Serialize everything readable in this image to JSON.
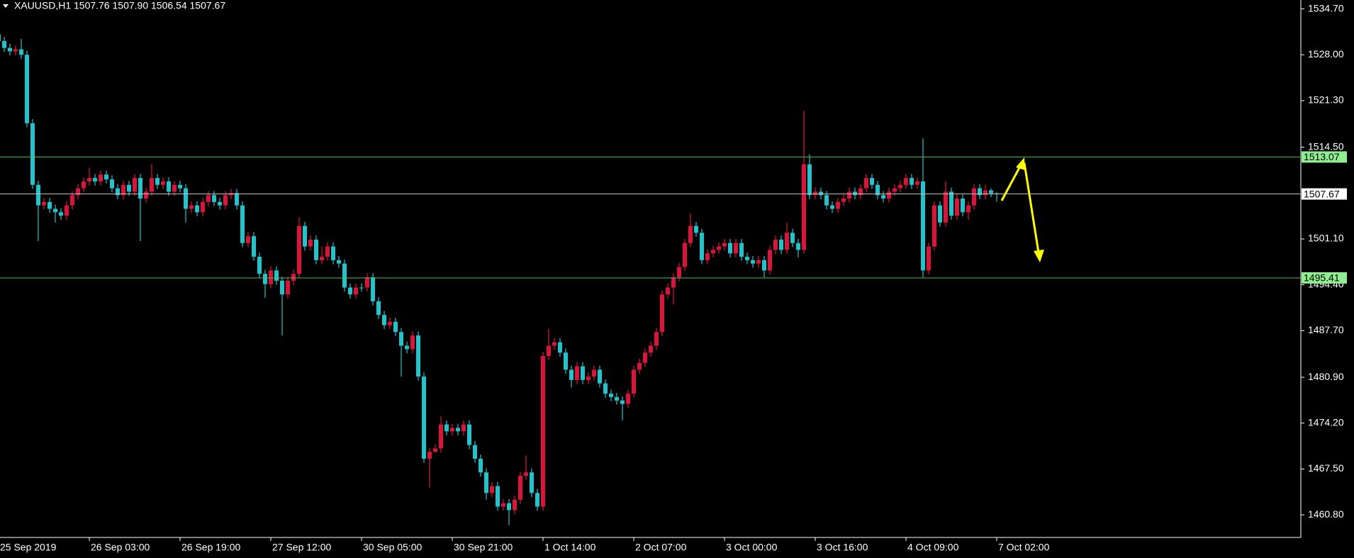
{
  "chart_data": {
    "type": "candlestick",
    "title": "XAUUSD,H1  1507.76 1507.90 1506.54 1507.67",
    "up_color": "#dc143c",
    "down_color": "#20c4cc",
    "ylim": [
      1457.5,
      1536.0
    ],
    "yticks": [
      {
        "value": 1460.8,
        "label": "1460.80"
      },
      {
        "value": 1467.5,
        "label": "1467.50"
      },
      {
        "value": 1474.2,
        "label": "1474.20"
      },
      {
        "value": 1480.9,
        "label": "1480.90"
      },
      {
        "value": 1487.7,
        "label": "1487.70"
      },
      {
        "value": 1494.4,
        "label": "1494.40"
      },
      {
        "value": 1501.1,
        "label": "1501.10"
      },
      {
        "value": 1514.5,
        "label": "1514.50"
      },
      {
        "value": 1521.3,
        "label": "1521.30"
      },
      {
        "value": 1528.0,
        "label": "1528.00"
      },
      {
        "value": 1534.7,
        "label": "1534.70"
      }
    ],
    "levels": [
      {
        "value": 1513.07,
        "color": "#4fbf4f",
        "label_bg": "#90ee90"
      },
      {
        "value": 1507.67,
        "color": "#c0c0c0",
        "label_bg": "#ffffff"
      },
      {
        "value": 1495.41,
        "color": "#4fbf4f",
        "label_bg": "#90ee90"
      }
    ],
    "categories": [
      "25 Sep 2019",
      null,
      null,
      null,
      null,
      null,
      null,
      null,
      null,
      null,
      null,
      null,
      null,
      null,
      null,
      null,
      "26 Sep 03:00",
      null,
      null,
      null,
      null,
      null,
      null,
      null,
      null,
      null,
      null,
      null,
      null,
      null,
      null,
      null,
      "26 Sep 19:00",
      null,
      null,
      null,
      null,
      null,
      null,
      null,
      null,
      null,
      null,
      null,
      null,
      null,
      null,
      null,
      "27 Sep 12:00",
      null,
      null,
      null,
      null,
      null,
      null,
      null,
      null,
      null,
      null,
      null,
      null,
      null,
      null,
      null,
      "30 Sep 05:00",
      null,
      null,
      null,
      null,
      null,
      null,
      null,
      null,
      null,
      null,
      null,
      null,
      null,
      null,
      null,
      "30 Sep 21:00",
      null,
      null,
      null,
      null,
      null,
      null,
      null,
      null,
      null,
      null,
      null,
      null,
      null,
      null,
      null,
      "1 Oct 14:00",
      null,
      null,
      null,
      null,
      null,
      null,
      null,
      null,
      null,
      null,
      null,
      null,
      null,
      null,
      null,
      "2 Oct 07:00",
      null,
      null,
      null,
      null,
      null,
      null,
      null,
      null,
      null,
      null,
      null,
      null,
      null,
      null,
      null,
      "3 Oct 00:00",
      null,
      null,
      null,
      null,
      null,
      null,
      null,
      null,
      null,
      null,
      null,
      null,
      null,
      null,
      null,
      "3 Oct 16:00",
      null,
      null,
      null,
      null,
      null,
      null,
      null,
      null,
      null,
      null,
      null,
      null,
      null,
      null,
      null,
      "4 Oct 09:00",
      null,
      null,
      null,
      null,
      null,
      null,
      null,
      null,
      null,
      null,
      null,
      null,
      null,
      null,
      null,
      "7 Oct 02:00"
    ],
    "open": [
      1531,
      1530,
      1529,
      1528.5,
      1528.8,
      1528,
      1518,
      1509,
      1506,
      1506.5,
      1505.5,
      1505,
      1504.5,
      1506,
      1507.5,
      1508.5,
      1509.5,
      1510,
      1509.5,
      1510.5,
      1509.8,
      1508.5,
      1507.5,
      1509,
      1508,
      1510,
      1507,
      1508,
      1510,
      1509,
      1509.5,
      1508,
      1509,
      1508.5,
      1505.5,
      1506,
      1505,
      1506.5,
      1507.5,
      1506.5,
      1506,
      1507.5,
      1507.8,
      1506,
      1500.5,
      1501.5,
      1498.5,
      1496,
      1494.5,
      1496.5,
      1495,
      1493,
      1495,
      1496,
      1503,
      1500,
      1501,
      1498,
      1498.5,
      1500,
      1498,
      1497.5,
      1494,
      1493,
      1494,
      1494,
      1495.5,
      1492,
      1490,
      1488.5,
      1489,
      1487.5,
      1485.5,
      1485,
      1487,
      1481,
      1469,
      1470,
      1470.5,
      1474,
      1473,
      1473.5,
      1473,
      1474,
      1471,
      1469,
      1467,
      1464,
      1465,
      1462,
      1462.5,
      1461.5,
      1463,
      1466.5,
      1467,
      1464,
      1462,
      1484,
      1485.5,
      1486,
      1484.5,
      1482,
      1480.5,
      1482.5,
      1480.5,
      1481,
      1482,
      1480,
      1478.5,
      1478,
      1477.5,
      1477,
      1478.5,
      1482,
      1483,
      1484.5,
      1485.5,
      1487.5,
      1493,
      1494,
      1495.5,
      1497,
      1500.5,
      1503,
      1502,
      1498,
      1499,
      1499.5,
      1500,
      1500.5,
      1499,
      1500.5,
      1498.5,
      1498,
      1497.5,
      1498,
      1496.5,
      1499.5,
      1501,
      1499.5,
      1502,
      1500.5,
      1499.5,
      1512,
      1507.5,
      1508,
      1507.5,
      1506,
      1505.5,
      1506.5,
      1507,
      1508,
      1507.5,
      1508.5,
      1510,
      1509,
      1507.5,
      1507,
      1508,
      1508.5,
      1509,
      1510,
      1509,
      1509.5,
      1496.5,
      1500,
      1506,
      1503.5,
      1508,
      1504.5,
      1507,
      1505,
      1506,
      1508.5,
      1507.5,
      1508.2,
      1507.76
    ],
    "high": [
      1531.6,
      1530.6,
      1529.6,
      1529.4,
      1530.3,
      1528.6,
      1518.6,
      1509.6,
      1507.1,
      1507.1,
      1506.1,
      1505.6,
      1506.6,
      1508.1,
      1509.1,
      1510.1,
      1511.5,
      1510.6,
      1511.1,
      1511.1,
      1510.4,
      1509.1,
      1509.6,
      1509.6,
      1510.6,
      1510.6,
      1508.6,
      1512,
      1510.6,
      1510.1,
      1510.1,
      1509.6,
      1509.6,
      1509.1,
      1506.6,
      1506.6,
      1507.1,
      1508.1,
      1508.1,
      1507.1,
      1508.1,
      1508.4,
      1508.4,
      1506.6,
      1502.1,
      1502.1,
      1499.1,
      1496.6,
      1497.1,
      1497.1,
      1495.6,
      1495.6,
      1496.6,
      1504.3,
      1503.6,
      1501.6,
      1501.6,
      1500,
      1500.6,
      1500.6,
      1498.6,
      1498.1,
      1494.6,
      1494.6,
      1494.6,
      1496.1,
      1496.1,
      1492.6,
      1490.6,
      1489.6,
      1489.6,
      1488.1,
      1486.1,
      1487.6,
      1487.6,
      1481.6,
      1470.6,
      1471.1,
      1475.2,
      1474.6,
      1474.1,
      1474.1,
      1474.6,
      1474.6,
      1471.6,
      1469.6,
      1467.6,
      1465.6,
      1465.6,
      1463.1,
      1463.1,
      1463.6,
      1467.1,
      1469.5,
      1467.6,
      1464.6,
      1484.6,
      1488,
      1486.6,
      1486.6,
      1485.1,
      1482.6,
      1483.1,
      1483.1,
      1481.6,
      1482.6,
      1482.6,
      1480.6,
      1479.1,
      1478.6,
      1478.1,
      1479.1,
      1482.6,
      1483.6,
      1485.1,
      1486.1,
      1488.1,
      1493.6,
      1494.6,
      1496.1,
      1497.6,
      1501.1,
      1504.8,
      1503.6,
      1502.6,
      1499.6,
      1500.1,
      1500.6,
      1501.1,
      1501.1,
      1501.1,
      1501.1,
      1499.1,
      1498.6,
      1498.6,
      1498.6,
      1500.1,
      1501.6,
      1501.6,
      1503.5,
      1502.6,
      1501.1,
      1519.8,
      1513.5,
      1508.6,
      1508.6,
      1508.1,
      1506.6,
      1507.1,
      1507.6,
      1508.6,
      1508.6,
      1509.1,
      1510.6,
      1510.6,
      1509.6,
      1508.1,
      1508.6,
      1509.1,
      1509.6,
      1510.6,
      1510.6,
      1510.1,
      1515.8,
      1500.6,
      1506.6,
      1506.6,
      1509.5,
      1508.6,
      1507.6,
      1507.6,
      1506.6,
      1509.1,
      1509.1,
      1509,
      1508.5,
      1507.9
    ],
    "low": [
      1529.4,
      1528.4,
      1527.9,
      1527.9,
      1527.4,
      1517.4,
      1508.4,
      1500.8,
      1505.4,
      1504.9,
      1503.5,
      1503.9,
      1503.9,
      1505.4,
      1506.9,
      1507.9,
      1508.9,
      1508.9,
      1508.9,
      1509.2,
      1507.9,
      1506.9,
      1506.9,
      1507.4,
      1507.4,
      1500.8,
      1506.4,
      1507.4,
      1508.4,
      1508.4,
      1507.4,
      1507.4,
      1507.9,
      1503.5,
      1504.9,
      1504.4,
      1504.4,
      1505.9,
      1505.9,
      1505.4,
      1505.4,
      1506.9,
      1505.4,
      1499.9,
      1499.9,
      1497.9,
      1495.4,
      1492.5,
      1493.9,
      1494.4,
      1487,
      1492.4,
      1494.4,
      1495.4,
      1499.4,
      1499.4,
      1497.4,
      1497.4,
      1497.9,
      1497.4,
      1496.9,
      1493.4,
      1492.4,
      1492.4,
      1493.4,
      1493.4,
      1491.4,
      1489.4,
      1487.9,
      1487.9,
      1486.9,
      1481,
      1484.4,
      1484.4,
      1480.4,
      1468.4,
      1464.8,
      1469.9,
      1469.9,
      1472.4,
      1472.4,
      1472.4,
      1472.4,
      1470.4,
      1468.4,
      1466.4,
      1463,
      1463.4,
      1461.4,
      1461.4,
      1459.3,
      1460.9,
      1462.4,
      1465.9,
      1463.4,
      1461.4,
      1461.4,
      1483.4,
      1484.9,
      1483.9,
      1481.4,
      1479.4,
      1479.9,
      1479.9,
      1479.9,
      1480.4,
      1479.4,
      1477.9,
      1477.4,
      1476.9,
      1474.6,
      1476.4,
      1477.9,
      1481.4,
      1482.4,
      1483.9,
      1484.9,
      1486.9,
      1492.4,
      1491.5,
      1494.9,
      1496.4,
      1499.9,
      1501.4,
      1497.4,
      1497.4,
      1498.4,
      1498.9,
      1499.4,
      1498.4,
      1498.4,
      1497.9,
      1497.4,
      1496.9,
      1496.9,
      1495.5,
      1495.9,
      1498.9,
      1498.9,
      1498.9,
      1499.9,
      1498.4,
      1499,
      1506.9,
      1506.9,
      1506.9,
      1505.4,
      1504.9,
      1504.9,
      1505.9,
      1506.4,
      1506.9,
      1506.9,
      1507.9,
      1508.4,
      1506.9,
      1506.4,
      1506.4,
      1507.4,
      1507.9,
      1508.4,
      1508.4,
      1508.4,
      1495.5,
      1495.9,
      1499.4,
      1502.9,
      1502.9,
      1503.9,
      1503.9,
      1504.4,
      1503.9,
      1505.4,
      1506.9,
      1506.9,
      1507.2,
      1506.54
    ],
    "close": [
      1530,
      1529,
      1528.5,
      1528.8,
      1528,
      1518,
      1509,
      1506,
      1506.5,
      1505.5,
      1505,
      1504.5,
      1506,
      1507.5,
      1508.5,
      1509.5,
      1510,
      1509.5,
      1510.5,
      1509.8,
      1508.5,
      1507.5,
      1509,
      1508,
      1510,
      1507,
      1508,
      1510,
      1509,
      1509.5,
      1508,
      1509,
      1508.5,
      1505.5,
      1506,
      1505,
      1506.5,
      1507.5,
      1506.5,
      1506,
      1507.5,
      1507.8,
      1506,
      1500.5,
      1501.5,
      1498.5,
      1496,
      1494.5,
      1496.5,
      1495,
      1493,
      1495,
      1496,
      1503,
      1500,
      1501,
      1498,
      1498.5,
      1500,
      1498,
      1497.5,
      1494,
      1493,
      1494,
      1494,
      1495.5,
      1492,
      1490,
      1488.5,
      1489,
      1487.5,
      1485.5,
      1485,
      1487,
      1481,
      1469,
      1470,
      1470.5,
      1474,
      1473,
      1473.5,
      1473,
      1474,
      1471,
      1469,
      1467,
      1464,
      1465,
      1462,
      1462.5,
      1461.5,
      1463,
      1466.5,
      1467,
      1464,
      1462,
      1484,
      1485.5,
      1486,
      1484.5,
      1482,
      1480.5,
      1482.5,
      1480.5,
      1481,
      1482,
      1480,
      1478.5,
      1478,
      1477.5,
      1477,
      1478.5,
      1482,
      1483,
      1484.5,
      1485.5,
      1487.5,
      1493,
      1494,
      1495.5,
      1497,
      1500.5,
      1503,
      1502,
      1498,
      1499,
      1499.5,
      1500,
      1500.5,
      1499,
      1500.5,
      1498.5,
      1498,
      1497.5,
      1498,
      1496.5,
      1499.5,
      1501,
      1499.5,
      1502,
      1500.5,
      1499.5,
      1512,
      1507.5,
      1508,
      1507.5,
      1506,
      1505.5,
      1506.5,
      1507,
      1508,
      1507.5,
      1508.5,
      1510,
      1509,
      1507.5,
      1507,
      1508,
      1508.5,
      1509,
      1510,
      1509,
      1509.5,
      1496.5,
      1500,
      1506,
      1503.5,
      1508,
      1504.5,
      1507,
      1505,
      1506,
      1508.5,
      1507.5,
      1508.2,
      1507.76,
      1507.67
    ]
  }
}
